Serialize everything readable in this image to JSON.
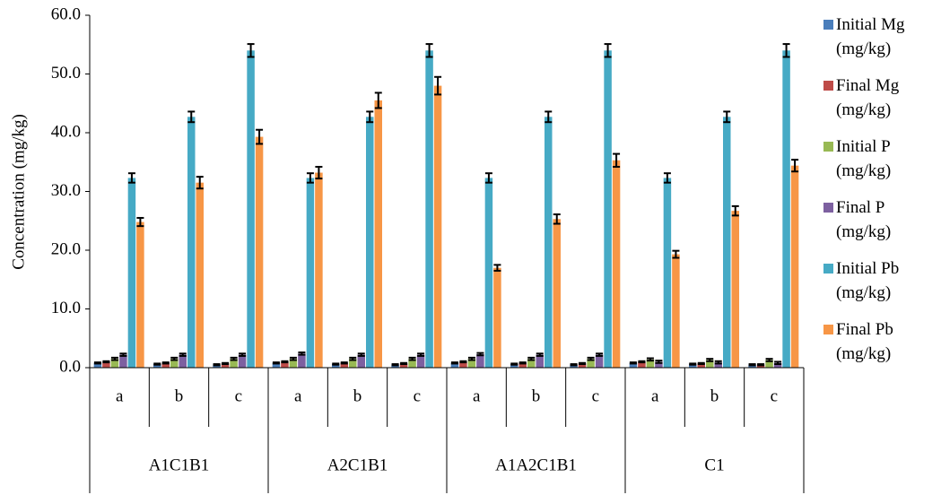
{
  "chart_data": {
    "type": "bar",
    "y_label": "Concentration (mg/kg)",
    "categories": [
      "a",
      "b",
      "c",
      "a",
      "b",
      "c",
      "a",
      "b",
      "c",
      "a",
      "b",
      "c"
    ],
    "groups": [
      "A1C1B1",
      "A2C1B1",
      "A1A2C1B1",
      "C1"
    ],
    "ylim": [
      0,
      60
    ],
    "yticks": [
      {
        "value": 0,
        "label": "0.0"
      },
      {
        "value": 10,
        "label": "10.0"
      },
      {
        "value": 20,
        "label": "20.0"
      },
      {
        "value": 30,
        "label": "30.0"
      },
      {
        "value": 40,
        "label": "40.0"
      },
      {
        "value": 50,
        "label": "50.0"
      },
      {
        "value": 60,
        "label": "60.0"
      }
    ],
    "series": [
      {
        "name": "Initial Mg (mg/kg)",
        "color": "#4a7ebb",
        "values": [
          0.8,
          0.6,
          0.5,
          0.8,
          0.6,
          0.5,
          0.8,
          0.6,
          0.5,
          0.8,
          0.6,
          0.5
        ],
        "errors": [
          0.1,
          0.1,
          0.1,
          0.1,
          0.1,
          0.1,
          0.1,
          0.1,
          0.1,
          0.1,
          0.1,
          0.1
        ]
      },
      {
        "name": "Final Mg (mg/kg)",
        "color": "#be4b48",
        "values": [
          1.0,
          0.8,
          0.7,
          1.0,
          0.8,
          0.7,
          1.0,
          0.8,
          0.7,
          1.0,
          0.7,
          0.5
        ],
        "errors": [
          0.1,
          0.1,
          0.1,
          0.1,
          0.1,
          0.1,
          0.1,
          0.1,
          0.1,
          0.1,
          0.1,
          0.1
        ]
      },
      {
        "name": "Initial P (mg/kg)",
        "color": "#98b954",
        "values": [
          1.5,
          1.5,
          1.5,
          1.5,
          1.5,
          1.5,
          1.5,
          1.5,
          1.5,
          1.4,
          1.3,
          1.3
        ],
        "errors": [
          0.2,
          0.2,
          0.2,
          0.2,
          0.2,
          0.2,
          0.2,
          0.2,
          0.2,
          0.2,
          0.2,
          0.2
        ]
      },
      {
        "name": "Final P (mg/kg)",
        "color": "#7d60a0",
        "values": [
          2.2,
          2.2,
          2.2,
          2.4,
          2.2,
          2.2,
          2.3,
          2.2,
          2.2,
          1.0,
          0.9,
          0.8
        ],
        "errors": [
          0.2,
          0.2,
          0.2,
          0.2,
          0.2,
          0.2,
          0.2,
          0.2,
          0.2,
          0.2,
          0.2,
          0.2
        ]
      },
      {
        "name": "Initial Pb (mg/kg)",
        "color": "#46aac5",
        "values": [
          32.3,
          42.7,
          54.0,
          32.3,
          42.7,
          54.0,
          32.3,
          42.7,
          54.0,
          32.3,
          42.7,
          54.0
        ],
        "errors": [
          0.8,
          0.9,
          1.1,
          0.8,
          0.9,
          1.1,
          0.8,
          0.9,
          1.1,
          0.8,
          0.9,
          1.1
        ]
      },
      {
        "name": "Final Pb (mg/kg)",
        "color": "#f79646",
        "values": [
          24.8,
          31.5,
          39.3,
          33.2,
          45.5,
          48.0,
          17.0,
          25.3,
          35.3,
          19.3,
          26.7,
          34.4
        ],
        "errors": [
          0.7,
          1.0,
          1.2,
          1.0,
          1.3,
          1.5,
          0.5,
          0.8,
          1.1,
          0.6,
          0.8,
          1.0
        ]
      }
    ]
  }
}
